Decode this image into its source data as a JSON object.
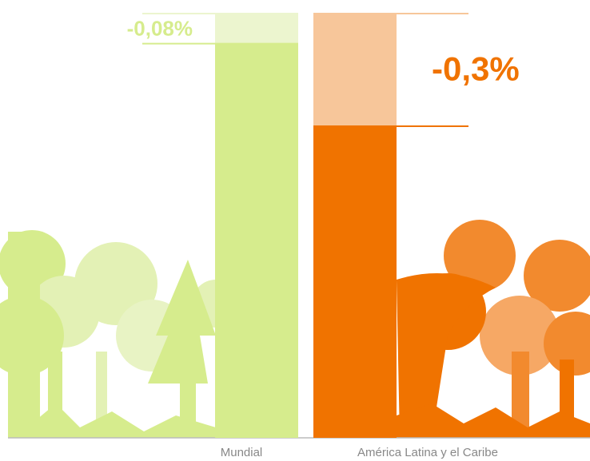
{
  "chart_data": {
    "type": "bar",
    "categories": [
      "Mundial",
      "América Latina y el Caribe"
    ],
    "values": [
      -0.08,
      -0.3
    ],
    "value_labels": [
      "-0,08%",
      "-0,3%"
    ],
    "colors": [
      "#d6ec8d",
      "#f07300"
    ],
    "light_colors": [
      "#ecf5cf",
      "#f7c69a"
    ]
  }
}
